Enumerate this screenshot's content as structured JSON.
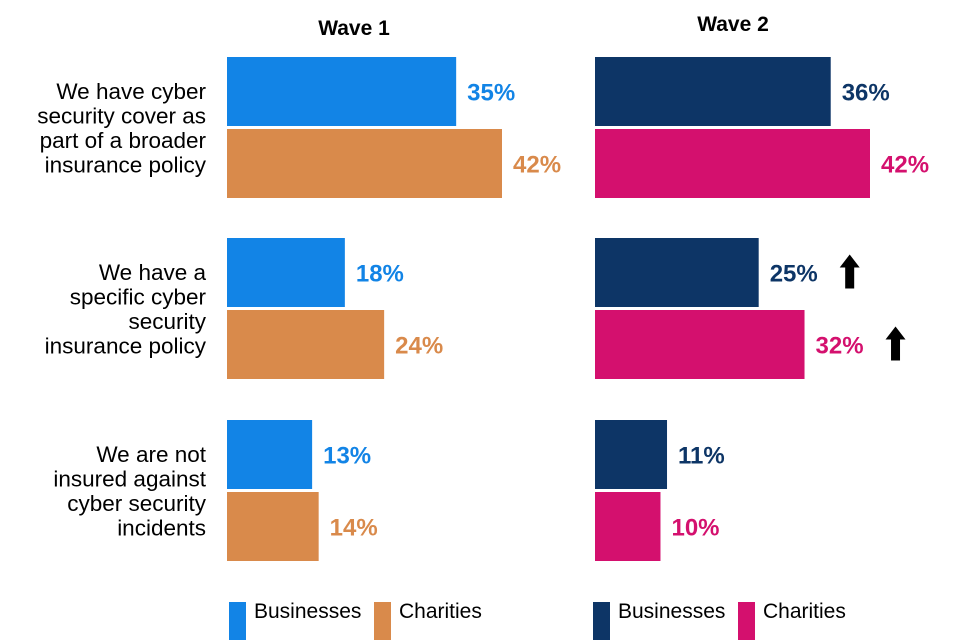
{
  "chart_data": {
    "type": "bar",
    "orientation": "horizontal",
    "categories": [
      "We have cyber security cover as part of a broader insurance policy",
      "We have a specific cyber security insurance policy",
      "We are not insured against cyber security incidents"
    ],
    "category_lines": [
      [
        "We have cyber",
        "security cover as",
        "part of a broader",
        "insurance policy"
      ],
      [
        "We have a",
        "specific cyber",
        "security",
        "insurance policy"
      ],
      [
        "We are not",
        "insured against",
        "cyber security",
        "incidents"
      ]
    ],
    "panels": [
      {
        "title": "Wave 1",
        "series": [
          {
            "name": "Businesses",
            "color": "#1284e6",
            "values": [
              35,
              18,
              13
            ],
            "labels": [
              "35%",
              "18%",
              "13%"
            ],
            "increase": [
              false,
              false,
              false
            ]
          },
          {
            "name": "Charities",
            "color": "#d98a4b",
            "values": [
              42,
              24,
              14
            ],
            "labels": [
              "42%",
              "24%",
              "14%"
            ],
            "increase": [
              false,
              false,
              false
            ]
          }
        ]
      },
      {
        "title": "Wave 2",
        "series": [
          {
            "name": "Businesses",
            "color": "#0d3566",
            "values": [
              36,
              25,
              11
            ],
            "labels": [
              "36%",
              "25%",
              "11%"
            ],
            "increase": [
              false,
              true,
              false
            ]
          },
          {
            "name": "Charities",
            "color": "#d4106e",
            "values": [
              42,
              32,
              10
            ],
            "labels": [
              "42%",
              "32%",
              "10%"
            ],
            "increase": [
              false,
              true,
              false
            ]
          }
        ]
      }
    ],
    "xlim": [
      0,
      42
    ],
    "grid": false,
    "legend_position": "bottom"
  }
}
